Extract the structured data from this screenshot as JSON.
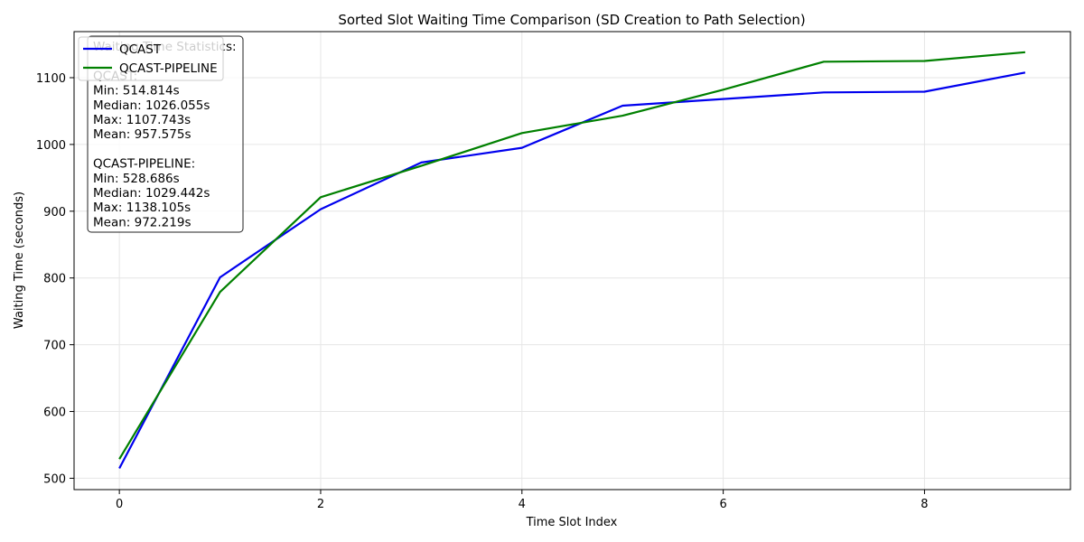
{
  "chart_data": {
    "type": "line",
    "title": "Sorted Slot Waiting Time Comparison (SD Creation to Path Selection)",
    "xlabel": "Time Slot Index",
    "ylabel": "Waiting Time (seconds)",
    "xlim": [
      -0.45,
      9.45
    ],
    "ylim": [
      483,
      1169
    ],
    "xticks": [
      "0",
      "2",
      "4",
      "6",
      "8"
    ],
    "yticks": [
      "500",
      "600",
      "700",
      "800",
      "900",
      "1000",
      "1100"
    ],
    "grid": true,
    "legend_position": "top-left",
    "x": [
      0,
      1,
      2,
      3,
      4,
      5,
      6,
      7,
      8,
      9
    ],
    "series": [
      {
        "name": "QCAST",
        "color": "#0000ee",
        "values": [
          514.814,
          801,
          903,
          973,
          995,
          1058,
          1068,
          1078,
          1079,
          1107.743
        ]
      },
      {
        "name": "QCAST-PIPELINE",
        "color": "#008000",
        "values": [
          528.686,
          779,
          921,
          968,
          1017,
          1043,
          1082,
          1124,
          1125,
          1138.105
        ]
      }
    ],
    "stats_box": {
      "lines": [
        "Waiting Time Statistics:",
        "",
        "QCAST:",
        "Min: 514.814s",
        "Median: 1026.055s",
        "Max: 1107.743s",
        "Mean: 957.575s",
        "",
        "QCAST-PIPELINE:",
        "Min: 528.686s",
        "Median: 1029.442s",
        "Max: 1138.105s",
        "Mean: 972.219s"
      ]
    }
  }
}
